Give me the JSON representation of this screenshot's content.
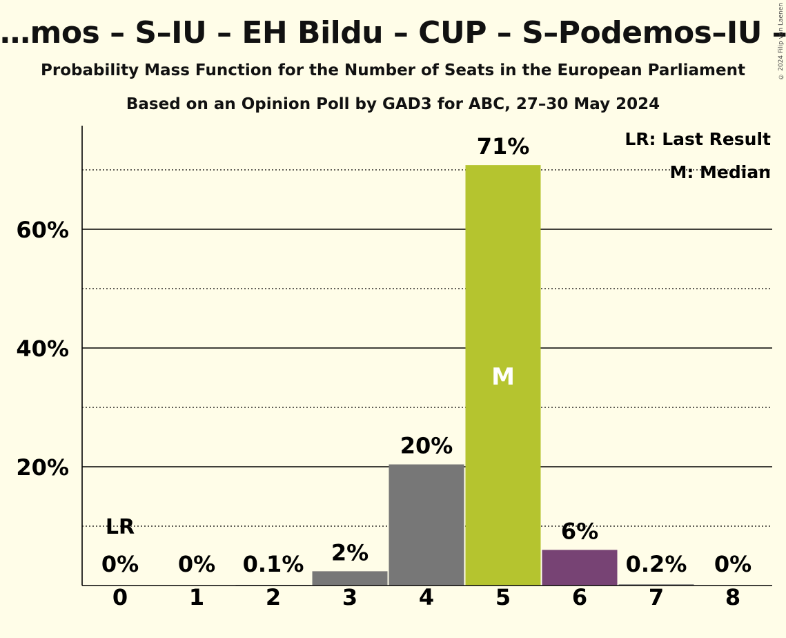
{
  "title": "…mos – S–IU – EH Bildu – CUP – S–Podemos–IU – PACMA…",
  "subtitle1": "Probability Mass Function for the Number of Seats in the European Parliament",
  "subtitle2": "Based on an Opinion Poll by GAD3 for ABC, 27–30 May 2024",
  "copyright": "© 2024 Filip van Laenen",
  "legend": {
    "lr": "LR: Last Result",
    "m": "M: Median"
  },
  "colors": {
    "background": "#fffde8",
    "grey": "#777777",
    "median": "#b5c42f",
    "purple": "#774374"
  },
  "chart_data": {
    "type": "bar",
    "categories": [
      "0",
      "1",
      "2",
      "3",
      "4",
      "5",
      "6",
      "7",
      "8"
    ],
    "values": [
      0,
      0,
      0.1,
      2.4,
      20.4,
      70.8,
      6.0,
      0.2,
      0
    ],
    "value_labels": [
      "0%",
      "0%",
      "0.1%",
      "2%",
      "20%",
      "71%",
      "6%",
      "0.2%",
      "0%"
    ],
    "bar_colors": [
      "#777777",
      "#777777",
      "#777777",
      "#777777",
      "#777777",
      "#b5c42f",
      "#774374",
      "#777777",
      "#777777"
    ],
    "last_result_index": 0,
    "last_result_label": "LR",
    "median_index": 5,
    "median_label": "M",
    "ylim": [
      0,
      77
    ],
    "yticks": [
      20,
      40,
      60
    ],
    "ytick_labels": [
      "20%",
      "40%",
      "60%"
    ],
    "minor_grid": [
      10,
      30,
      50,
      70
    ],
    "legend_position": "top-right"
  }
}
